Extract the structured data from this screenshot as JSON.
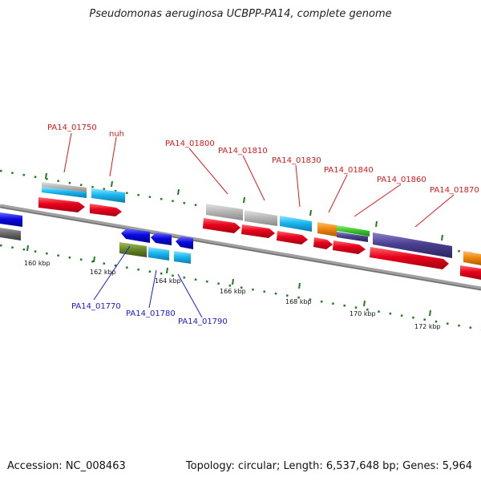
{
  "title": "Pseudomonas aeruginosa UCBPP-PA14, complete genome",
  "footer": {
    "accession": "Accession: NC_008463",
    "summary": "Topology: circular; Length: 6,537,648 bp; Genes: 5,964"
  },
  "scale_labels": [
    "160 kbp",
    "162 kbp",
    "164 kbp",
    "166 kbp",
    "168 kbp",
    "170 kbp",
    "172 kbp"
  ],
  "forward_gene_labels": [
    "PA14_01750",
    "nuh",
    "PA14_01800",
    "PA14_01810",
    "PA14_01830",
    "PA14_01840",
    "PA14_01860",
    "PA14_01870"
  ],
  "reverse_gene_labels": [
    "PA14_01770",
    "PA14_01780",
    "PA14_01790"
  ],
  "colors": {
    "forward_gene": "#e8001c",
    "reverse_gene": "#0a0ae0",
    "cds_cyan": "#1ab8f0",
    "cds_gray": "#b8b8b8",
    "cds_orange": "#f08a10",
    "cds_green": "#3cc830",
    "cds_purple": "#4a4090",
    "cds_olive": "#6a8a28",
    "backbone": "#808080",
    "ticks": "#207a20",
    "forward_label": "#d81a1a",
    "reverse_label": "#1a1ad8"
  }
}
